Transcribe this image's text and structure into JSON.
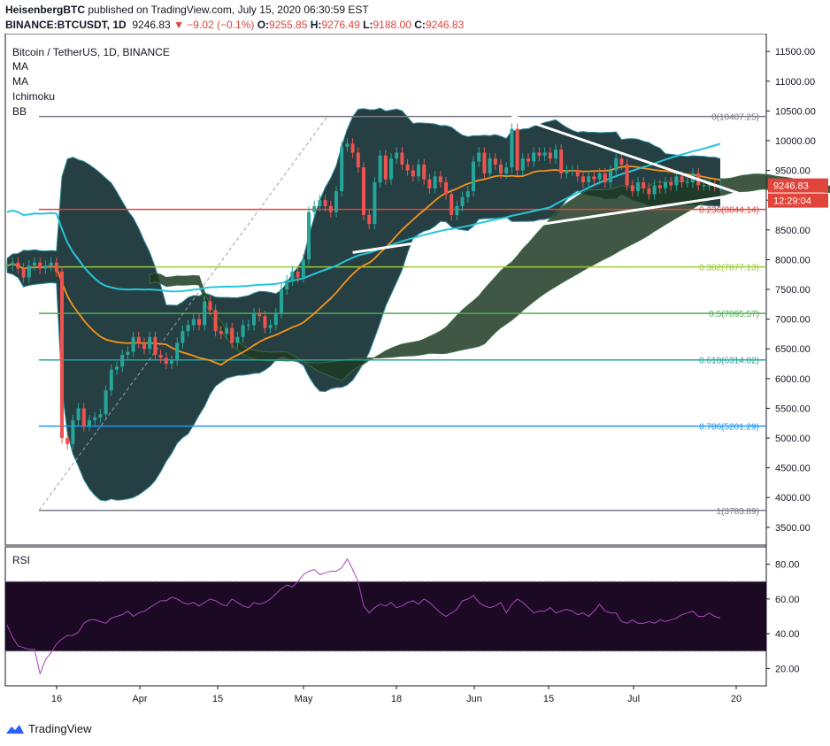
{
  "header": {
    "author": "HeisenbergBTC",
    "published_text": "published on TradingView.com, July 15, 2020 06:30:59 EST",
    "symbol": "BINANCE:BTCUSDT, 1D",
    "price": "9246.83",
    "change": "▼ −9.02 (−0.1%)",
    "o_label": "O:",
    "o_value": "9255.85",
    "h_label": "H:",
    "h_value": "9276.49",
    "l_label": "L:",
    "l_value": "9188.00",
    "c_label": "C:",
    "c_value": "9246.83"
  },
  "legend": {
    "title": "Bitcoin / TetherUS, 1D, BINANCE",
    "items": [
      "MA",
      "MA",
      "Ichimoku",
      "BB"
    ]
  },
  "rsi_label": "RSI",
  "footer": {
    "brand": "TradingView"
  },
  "colors": {
    "up": "#26a69a",
    "down": "#ef5350",
    "ma_orange": "#f7931a",
    "ma_cyan": "#26c6da",
    "rsi": "#ab47bc",
    "rsi_band": "#1c0a24",
    "cloud_green": "#1e3a24",
    "cloud_red": "#3d1e22",
    "bb_fill": "#0e2a2f",
    "price_badge": "#e0443a"
  },
  "chart_data": {
    "type": "candlestick",
    "title": "Bitcoin / TetherUS, 1D, BINANCE",
    "ylim": [
      3200,
      11800
    ],
    "y_ticks": [
      "11500.00",
      "11000.00",
      "10500.00",
      "10000.00",
      "9500.00",
      "9000.00",
      "8500.00",
      "8000.00",
      "7500.00",
      "7000.00",
      "6500.00",
      "6000.00",
      "5500.00",
      "5000.00",
      "4500.00",
      "4000.00",
      "3500.00"
    ],
    "x_ticks": [
      "16",
      "Apr",
      "15",
      "May",
      "18",
      "Jun",
      "15",
      "Jul",
      "20"
    ],
    "last_price": "9246.83",
    "countdown": "12:29:04",
    "fib_levels": [
      {
        "label": "0(10407.25)",
        "value": 10407.25,
        "color": "#787b86"
      },
      {
        "label": "0.236(8844.14)",
        "value": 8844.14,
        "color": "#e0443a"
      },
      {
        "label": "0.382(7877.13)",
        "value": 7877.13,
        "color": "#9ccc33"
      },
      {
        "label": "0.5(7095.57)",
        "value": 7095.57,
        "color": "#4caf50"
      },
      {
        "label": "0.618(6314.02)",
        "value": 6314.02,
        "color": "#26a69a"
      },
      {
        "label": "0.786(5201.29)",
        "value": 5201.29,
        "color": "#2196f3"
      },
      {
        "label": "1(3783.89)",
        "value": 3783.89,
        "color": "#787b86"
      }
    ],
    "triangle": {
      "upper": [
        [
          10400,
          "Jun"
        ],
        [
          9100,
          "Jul-20"
        ]
      ],
      "lower": [
        [
          8120,
          "May-10"
        ],
        [
          9100,
          "Jul-20"
        ]
      ]
    },
    "close_series": [
      7900,
      7950,
      7850,
      7700,
      7900,
      7950,
      7850,
      7900,
      7950,
      7800,
      5000,
      4900,
      5300,
      5500,
      5200,
      5300,
      5350,
      5400,
      5800,
      6150,
      6200,
      6400,
      6450,
      6700,
      6600,
      6500,
      6700,
      6400,
      6350,
      6250,
      6300,
      6600,
      6800,
      6900,
      7000,
      6900,
      7300,
      7150,
      6800,
      6750,
      6850,
      6600,
      6700,
      6900,
      6900,
      7100,
      7050,
      6850,
      6900,
      7100,
      7500,
      7650,
      7800,
      7700,
      8000,
      8800,
      8900,
      9000,
      8900,
      8800,
      9150,
      9900,
      9950,
      9800,
      9550,
      8750,
      8600,
      9300,
      9750,
      9350,
      9700,
      9800,
      9600,
      9500,
      9400,
      9600,
      9350,
      9200,
      9400,
      9300,
      9100,
      8750,
      8900,
      9050,
      9150,
      9650,
      9800,
      9450,
      9700,
      9600,
      9450,
      9550,
      10200,
      9500,
      9700,
      9650,
      9800,
      9750,
      9800,
      9700,
      9850,
      9450,
      9500,
      9500,
      9400,
      9300,
      9400,
      9350,
      9450,
      9300,
      9500,
      9700,
      9600,
      9250,
      9150,
      9300,
      9200,
      9100,
      9250,
      9200,
      9300,
      9250,
      9400,
      9300,
      9300,
      9450,
      9250,
      9250,
      9250,
      9240,
      9246
    ],
    "rsi": {
      "ylim": [
        10,
        90
      ],
      "y_ticks": [
        "80.00",
        "60.00",
        "40.00",
        "20.00"
      ],
      "upper_band": 70,
      "lower_band": 30,
      "values": [
        45,
        38,
        33,
        32,
        31,
        31,
        17,
        25,
        29,
        34,
        37,
        39,
        39,
        41,
        46,
        48,
        48,
        47,
        46,
        49,
        50,
        51,
        53,
        50,
        52,
        53,
        55,
        57,
        59,
        59,
        61,
        60,
        58,
        57,
        58,
        56,
        58,
        60,
        59,
        57,
        56,
        60,
        58,
        56,
        55,
        58,
        57,
        58,
        60,
        63,
        66,
        68,
        67,
        70,
        74,
        76,
        77,
        74,
        75,
        76,
        76,
        78,
        83,
        77,
        70,
        56,
        52,
        55,
        57,
        56,
        58,
        55,
        56,
        58,
        59,
        57,
        60,
        58,
        55,
        52,
        50,
        52,
        54,
        59,
        60,
        62,
        58,
        56,
        55,
        56,
        58,
        52,
        57,
        60,
        58,
        55,
        52,
        53,
        53,
        55,
        52,
        53,
        54,
        53,
        51,
        52,
        50,
        53,
        57,
        53,
        52,
        52,
        47,
        46,
        48,
        46,
        46,
        47,
        46,
        48,
        47,
        48,
        49,
        51,
        52,
        53,
        50,
        50,
        52,
        50,
        49
      ]
    }
  }
}
